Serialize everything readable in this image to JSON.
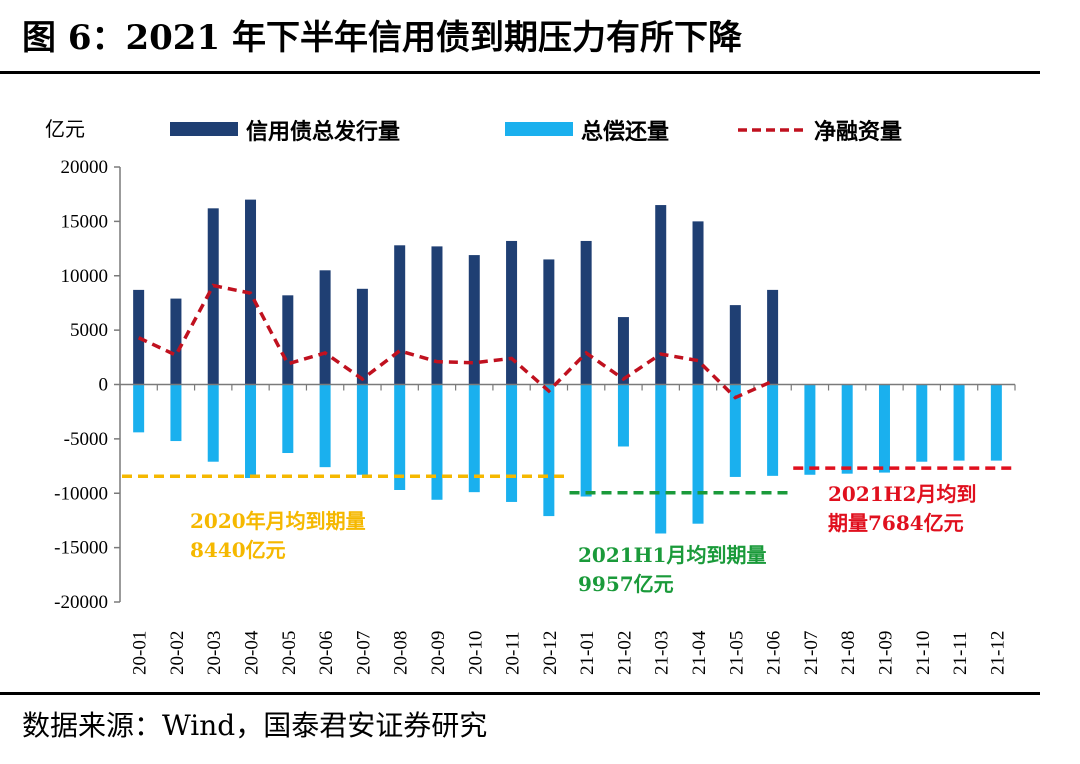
{
  "title": "图 6：2021 年下半年信用债到期压力有所下降",
  "source": "数据来源：Wind，国泰君安证券研究",
  "colors": {
    "issue": "#1f3f73",
    "repay": "#1ab0ee",
    "net": "#c0111f",
    "avg2020": "#f5b800",
    "avgH1": "#1a9a3a",
    "avgH2": "#e0101e"
  },
  "chart_data": {
    "type": "bar",
    "unit_label": "亿元",
    "legend": [
      "信用债总发行量",
      "总偿还量",
      "净融资量"
    ],
    "legend_position": "top",
    "ylim": [
      -20000,
      20000
    ],
    "yticks": [
      20000,
      15000,
      10000,
      5000,
      0,
      -5000,
      -10000,
      -15000,
      -20000
    ],
    "categories": [
      "20-01",
      "20-02",
      "20-03",
      "20-04",
      "20-05",
      "20-06",
      "20-07",
      "20-08",
      "20-09",
      "20-10",
      "20-11",
      "20-12",
      "21-01",
      "21-02",
      "21-03",
      "21-04",
      "21-05",
      "21-06",
      "21-07",
      "21-08",
      "21-09",
      "21-10",
      "21-11",
      "21-12"
    ],
    "series": [
      {
        "name": "信用债总发行量",
        "type": "bar",
        "values": [
          8700,
          7900,
          16200,
          17000,
          8200,
          10500,
          8800,
          12800,
          12700,
          11900,
          13200,
          11500,
          13200,
          6200,
          16500,
          15000,
          7300,
          8700,
          null,
          null,
          null,
          null,
          null,
          null
        ]
      },
      {
        "name": "总偿还量",
        "type": "bar",
        "values": [
          -4400,
          -5200,
          -7100,
          -8600,
          -6300,
          -7600,
          -8300,
          -9700,
          -10600,
          -9900,
          -10800,
          -12100,
          -10300,
          -5700,
          -13700,
          -12800,
          -8500,
          -8400,
          -8300,
          -8200,
          -8100,
          -7100,
          -7000,
          -7000
        ]
      },
      {
        "name": "净融资量",
        "type": "line",
        "dashed": true,
        "values": [
          4300,
          2700,
          9100,
          8400,
          1900,
          2900,
          500,
          3100,
          2100,
          2000,
          2400,
          -600,
          2900,
          500,
          2800,
          2200,
          -1200,
          300,
          null,
          null,
          null,
          null,
          null,
          null
        ]
      }
    ],
    "annotations": [
      {
        "text_lines": [
          "2020年月均到期量",
          "8440亿元"
        ],
        "value": -8440,
        "from": "20-01",
        "to": "20-12",
        "color_key": "avg2020"
      },
      {
        "text_lines": [
          "2021H1月均到期量",
          "9957亿元"
        ],
        "value": -9957,
        "from": "21-01",
        "to": "21-06",
        "color_key": "avgH1"
      },
      {
        "text_lines": [
          "2021H2月均到",
          "期量7684亿元"
        ],
        "value": -7684,
        "from": "21-07",
        "to": "21-12",
        "color_key": "avgH2"
      }
    ]
  }
}
